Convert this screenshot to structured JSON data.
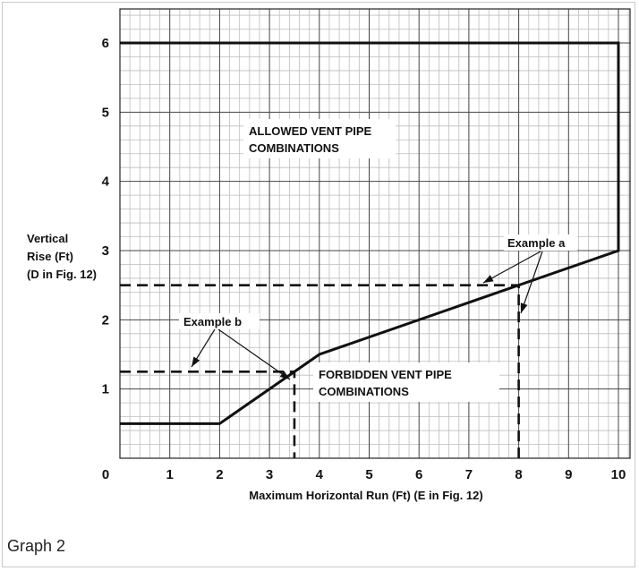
{
  "caption": "Graph 2",
  "chart_data": {
    "type": "line",
    "xlabel": "Maximum Horizontal Run (Ft) (E in Fig. 12)",
    "ylabel_lines": [
      "Vertical",
      "Rise (Ft)",
      "(D in Fig. 12)"
    ],
    "xlim": [
      0,
      10.2
    ],
    "ylim": [
      0,
      6.5
    ],
    "x_ticks": [
      "0",
      "1",
      "2",
      "3",
      "4",
      "5",
      "6",
      "7",
      "8",
      "9",
      "10"
    ],
    "y_ticks": [
      "1",
      "2",
      "3",
      "4",
      "5",
      "6"
    ],
    "grid": true,
    "boundary": {
      "x": [
        0,
        2,
        4,
        10,
        10,
        0
      ],
      "y": [
        0.5,
        0.5,
        1.5,
        3,
        6,
        6
      ]
    },
    "example_lines": [
      {
        "x": [
          0,
          8,
          8
        ],
        "y": [
          2.5,
          2.5,
          0
        ]
      },
      {
        "x": [
          0,
          3.5,
          3.5
        ],
        "y": [
          1.25,
          1.25,
          0
        ]
      }
    ],
    "region_labels": {
      "allowed": [
        "ALLOWED VENT PIPE",
        "COMBINATIONS"
      ],
      "forbidden": [
        "FORBIDDEN VENT PIPE",
        "COMBINATIONS"
      ]
    },
    "annotations": {
      "example_a": "Example a",
      "example_b": "Example b"
    }
  }
}
